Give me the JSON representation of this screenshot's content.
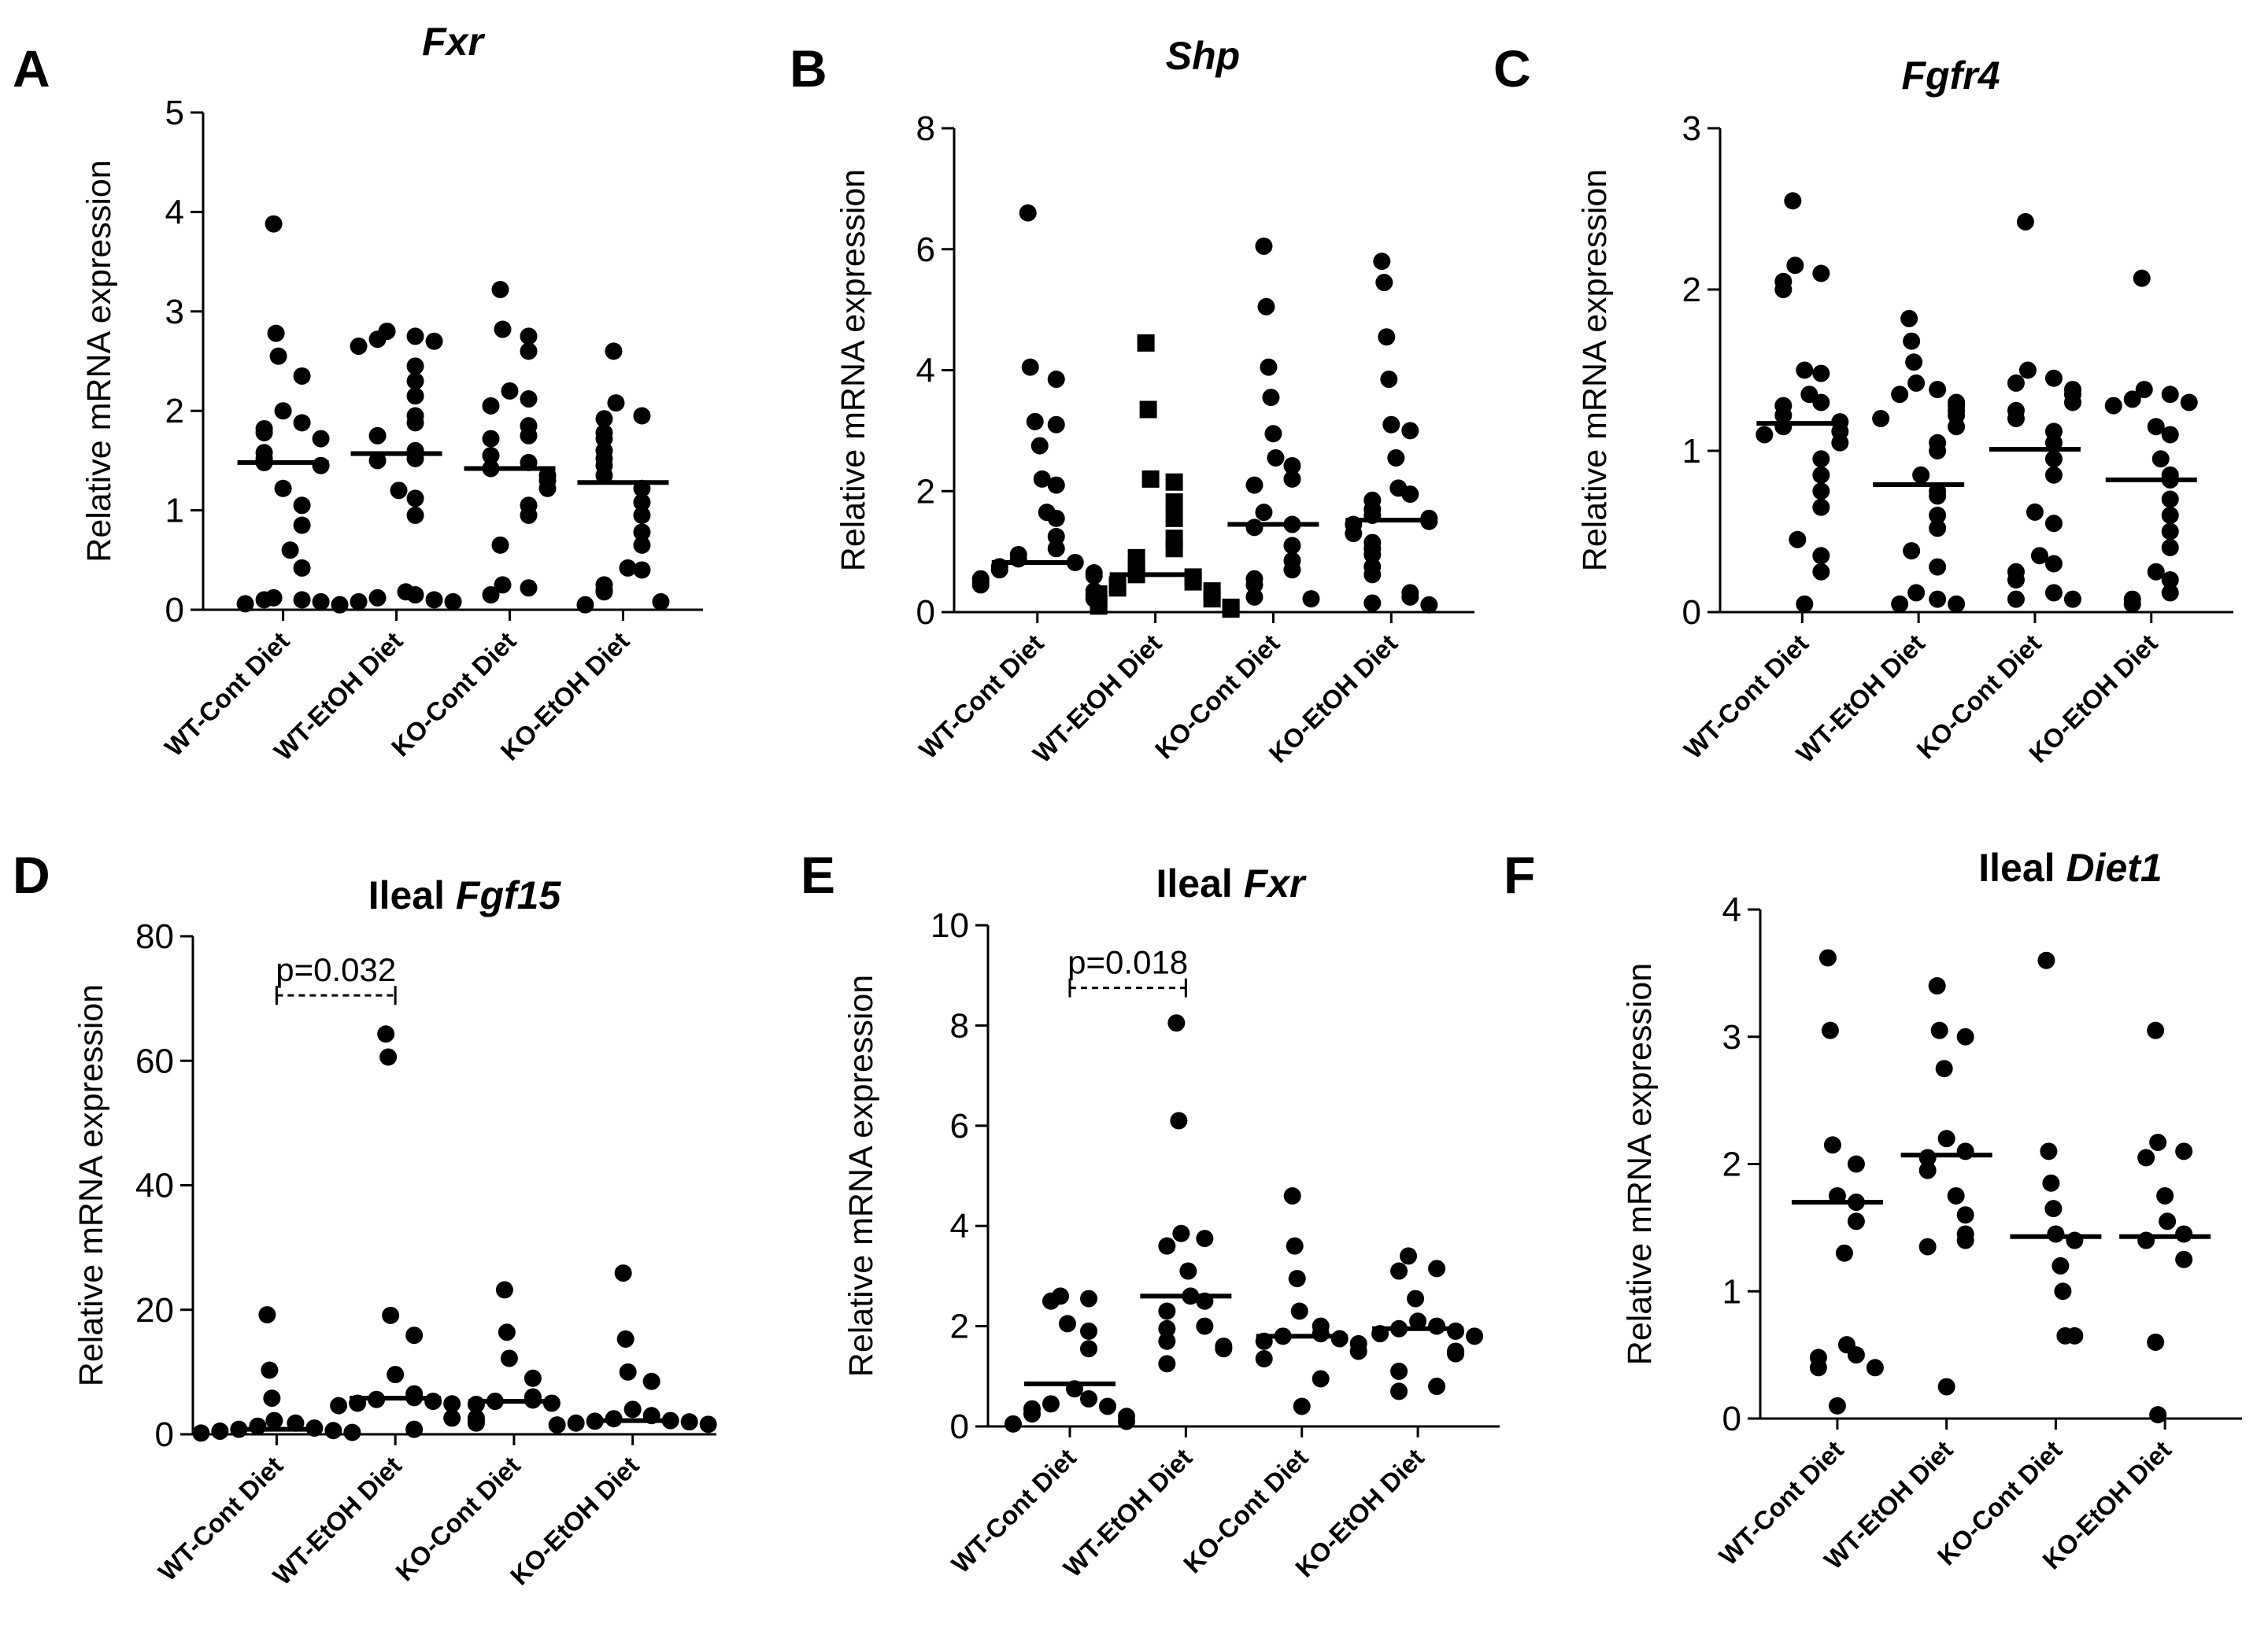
{
  "figure": {
    "background": "#ffffff",
    "ink": "#000000"
  },
  "chart_data": [
    {
      "type": "scatter",
      "panel": "A",
      "title": {
        "prefix": "",
        "gene": "Fxr"
      },
      "ylabel": "Relative mRNA expression",
      "ylim": [
        0,
        5
      ],
      "yticks": [
        0,
        1,
        2,
        3,
        4,
        5
      ],
      "categories": [
        "WT-Cont Diet",
        "WT-EtOH Diet",
        "KO-Cont Diet",
        "KO-EtOH Diet"
      ],
      "medians": [
        1.48,
        1.57,
        1.42,
        1.28
      ],
      "series": [
        {
          "name": "WT-Cont Diet",
          "marker": "circle",
          "values": [
            3.88,
            2.78,
            2.55,
            2.35,
            2.0,
            1.88,
            1.82,
            1.78,
            1.72,
            1.58,
            1.52,
            1.48,
            1.45,
            1.22,
            1.05,
            0.85,
            0.6,
            0.42,
            0.12,
            0.1,
            0.1,
            0.08,
            0.06,
            0.05
          ]
        },
        {
          "name": "WT-EtOH Diet",
          "marker": "circle",
          "values": [
            2.8,
            2.75,
            2.72,
            2.7,
            2.65,
            2.45,
            2.3,
            2.15,
            1.95,
            1.88,
            1.75,
            1.6,
            1.52,
            1.5,
            1.2,
            1.12,
            0.95,
            0.18,
            0.15,
            0.12,
            0.1,
            0.08,
            0.08,
            0.05
          ]
        },
        {
          "name": "KO-Cont Diet",
          "marker": "circle",
          "values": [
            3.22,
            2.82,
            2.75,
            2.6,
            2.2,
            2.12,
            2.05,
            1.85,
            1.75,
            1.72,
            1.55,
            1.48,
            1.42,
            1.35,
            1.3,
            1.22,
            1.05,
            0.95,
            0.65,
            0.25,
            0.22,
            0.15
          ]
        },
        {
          "name": "KO-EtOH Diet",
          "marker": "circle",
          "values": [
            2.6,
            2.08,
            1.95,
            1.92,
            1.78,
            1.72,
            1.6,
            1.52,
            1.45,
            1.35,
            1.22,
            1.08,
            0.95,
            0.78,
            0.65,
            0.42,
            0.4,
            0.25,
            0.2,
            0.18,
            0.08,
            0.05
          ]
        }
      ]
    },
    {
      "type": "scatter",
      "panel": "B",
      "title": {
        "prefix": "",
        "gene": "Shp"
      },
      "ylabel": "Relative mRNA expression",
      "ylim": [
        0,
        8
      ],
      "yticks": [
        0,
        2,
        4,
        6,
        8
      ],
      "categories": [
        "WT-Cont Diet",
        "WT-EtOH Diet",
        "KO-Cont Diet",
        "KO-EtOH Diet"
      ],
      "medians": [
        0.82,
        0.62,
        1.45,
        1.52
      ],
      "series": [
        {
          "name": "WT-Cont Diet",
          "marker": "circle",
          "values": [
            6.6,
            4.05,
            3.85,
            3.15,
            3.1,
            2.75,
            2.2,
            2.1,
            1.65,
            1.55,
            1.25,
            1.05,
            0.95,
            0.88,
            0.82,
            0.75,
            0.7,
            0.65,
            0.6,
            0.55,
            0.5,
            0.45,
            0.35,
            0.28,
            0.22
          ]
        },
        {
          "name": "WT-EtOH Diet",
          "marker": "square",
          "values": [
            4.45,
            3.35,
            2.2,
            2.15,
            1.82,
            1.55,
            1.22,
            1.05,
            0.9,
            0.75,
            0.62,
            0.58,
            0.5,
            0.45,
            0.4,
            0.35,
            0.3,
            0.22,
            0.2,
            0.15,
            0.1,
            0.08,
            0.05
          ]
        },
        {
          "name": "KO-Cont Diet",
          "marker": "circle",
          "values": [
            6.05,
            5.05,
            4.05,
            3.55,
            2.95,
            2.55,
            2.42,
            2.2,
            2.1,
            1.65,
            1.45,
            1.4,
            1.1,
            0.85,
            0.7,
            0.55,
            0.45,
            0.25,
            0.22
          ]
        },
        {
          "name": "KO-EtOH Diet",
          "marker": "circle",
          "values": [
            5.8,
            5.45,
            4.55,
            3.85,
            3.1,
            3.0,
            2.55,
            2.05,
            1.95,
            1.85,
            1.7,
            1.6,
            1.55,
            1.5,
            1.45,
            1.3,
            1.15,
            1.05,
            0.95,
            0.75,
            0.62,
            0.32,
            0.25,
            0.15,
            0.12
          ]
        }
      ]
    },
    {
      "type": "scatter",
      "panel": "C",
      "title": {
        "prefix": "",
        "gene": "Fgfr4"
      },
      "ylabel": "Relative mRNA expression",
      "ylim": [
        0,
        3
      ],
      "yticks": [
        0,
        1,
        2,
        3
      ],
      "categories": [
        "WT-Cont Diet",
        "WT-EtOH Diet",
        "KO-Cont Diet",
        "KO-EtOH Diet"
      ],
      "medians": [
        1.17,
        0.79,
        1.01,
        0.82
      ],
      "series": [
        {
          "name": "WT-Cont Diet",
          "marker": "circle",
          "values": [
            2.55,
            2.15,
            2.1,
            2.05,
            2.0,
            1.5,
            1.48,
            1.35,
            1.3,
            1.28,
            1.22,
            1.18,
            1.15,
            1.12,
            1.1,
            1.05,
            0.95,
            0.85,
            0.75,
            0.65,
            0.45,
            0.35,
            0.25,
            0.05
          ]
        },
        {
          "name": "WT-EtOH Diet",
          "marker": "circle",
          "values": [
            1.82,
            1.68,
            1.55,
            1.42,
            1.38,
            1.35,
            1.3,
            1.28,
            1.25,
            1.22,
            1.2,
            1.15,
            1.05,
            1.0,
            0.85,
            0.75,
            0.72,
            0.6,
            0.52,
            0.38,
            0.28,
            0.12,
            0.08,
            0.05,
            0.05
          ]
        },
        {
          "name": "KO-Cont Diet",
          "marker": "circle",
          "values": [
            2.42,
            1.5,
            1.45,
            1.42,
            1.38,
            1.35,
            1.3,
            1.25,
            1.2,
            1.12,
            1.05,
            0.95,
            0.85,
            0.62,
            0.55,
            0.35,
            0.3,
            0.25,
            0.2,
            0.12,
            0.08,
            0.08
          ]
        },
        {
          "name": "KO-EtOH Diet",
          "marker": "circle",
          "values": [
            2.07,
            1.38,
            1.35,
            1.32,
            1.3,
            1.28,
            1.15,
            1.1,
            0.95,
            0.85,
            0.82,
            0.7,
            0.6,
            0.5,
            0.4,
            0.25,
            0.2,
            0.12,
            0.08,
            0.05
          ]
        }
      ]
    },
    {
      "type": "scatter",
      "panel": "D",
      "title": {
        "prefix": "Ileal ",
        "gene": "Fgf15"
      },
      "ylabel": "Relative mRNA expression",
      "ylim": [
        0,
        80
      ],
      "yticks": [
        0,
        20,
        40,
        60,
        80
      ],
      "categories": [
        "WT-Cont Diet",
        "WT-EtOH Diet",
        "KO-Cont Diet",
        "KO-EtOH Diet"
      ],
      "medians": [
        0.8,
        5.8,
        5.3,
        2.2
      ],
      "comparison": {
        "from": 0,
        "to": 1,
        "label": "p=0.032",
        "y": 70.5
      },
      "series": [
        {
          "name": "WT-Cont Diet",
          "marker": "circle",
          "values": [
            19.2,
            10.3,
            5.8,
            2.2,
            1.8,
            1.3,
            1.0,
            0.8,
            0.6,
            0.5,
            0.3,
            0.2
          ]
        },
        {
          "name": "WT-EtOH Diet",
          "marker": "circle",
          "values": [
            64.3,
            60.6,
            19.1,
            15.9,
            9.6,
            6.5,
            5.9,
            5.6,
            5.3,
            5.0,
            4.9,
            4.6,
            2.6,
            0.8
          ]
        },
        {
          "name": "KO-Cont Diet",
          "marker": "circle",
          "values": [
            23.2,
            16.4,
            12.2,
            9.0,
            6.0,
            5.5,
            5.3,
            5.0,
            4.8,
            2.6,
            2.2,
            1.8
          ]
        },
        {
          "name": "KO-EtOH Diet",
          "marker": "circle",
          "values": [
            25.9,
            15.3,
            10.0,
            8.5,
            4.0,
            3.0,
            2.5,
            2.2,
            2.1,
            2.0,
            1.8,
            1.6,
            1.5
          ]
        }
      ]
    },
    {
      "type": "scatter",
      "panel": "E",
      "title": {
        "prefix": "Ileal ",
        "gene": "Fxr"
      },
      "ylabel": "Relative mRNA expression",
      "ylim": [
        0,
        10
      ],
      "yticks": [
        0,
        2,
        4,
        6,
        8,
        10
      ],
      "categories": [
        "WT-Cont Diet",
        "WT-EtOH Diet",
        "KO-Cont Diet",
        "KO-EtOH Diet"
      ],
      "medians": [
        0.85,
        2.6,
        1.8,
        1.95
      ],
      "comparison": {
        "from": 0,
        "to": 1,
        "label": "p=0.018",
        "y": 8.75
      },
      "series": [
        {
          "name": "WT-Cont Diet",
          "marker": "circle",
          "values": [
            2.6,
            2.55,
            2.5,
            2.05,
            1.9,
            1.55,
            0.75,
            0.55,
            0.45,
            0.4,
            0.35,
            0.25,
            0.2,
            0.1,
            0.05
          ]
        },
        {
          "name": "WT-EtOH Diet",
          "marker": "circle",
          "values": [
            8.05,
            6.1,
            3.85,
            3.75,
            3.6,
            3.1,
            2.6,
            2.5,
            2.3,
            2.0,
            1.95,
            1.7,
            1.6,
            1.55,
            1.25
          ]
        },
        {
          "name": "KO-Cont Diet",
          "marker": "circle",
          "values": [
            4.6,
            3.6,
            2.95,
            2.3,
            2.0,
            1.85,
            1.8,
            1.75,
            1.7,
            1.65,
            1.5,
            1.35,
            0.95,
            0.4
          ]
        },
        {
          "name": "KO-EtOH Diet",
          "marker": "circle",
          "values": [
            3.4,
            3.15,
            3.1,
            2.55,
            2.1,
            2.0,
            1.95,
            1.9,
            1.85,
            1.8,
            1.5,
            1.45,
            1.1,
            0.8,
            0.7
          ]
        }
      ]
    },
    {
      "type": "scatter",
      "panel": "F",
      "title": {
        "prefix": "Ileal ",
        "gene": "Diet1"
      },
      "ylabel": "Relative mRNA expression",
      "ylim": [
        0,
        4
      ],
      "yticks": [
        0,
        1,
        2,
        3,
        4
      ],
      "categories": [
        "WT-Cont Diet",
        "WT-EtOH Diet",
        "KO-Cont Diet",
        "KO-EtOH Diet"
      ],
      "medians": [
        1.7,
        2.07,
        1.43,
        1.43
      ],
      "series": [
        {
          "name": "WT-Cont Diet",
          "marker": "circle",
          "values": [
            3.62,
            3.05,
            2.15,
            2.0,
            1.75,
            1.7,
            1.55,
            1.3,
            0.58,
            0.5,
            0.48,
            0.4,
            0.4,
            0.1
          ]
        },
        {
          "name": "WT-EtOH Diet",
          "marker": "circle",
          "values": [
            3.4,
            3.05,
            3.0,
            2.75,
            2.2,
            2.1,
            2.05,
            1.95,
            1.75,
            1.6,
            1.45,
            1.4,
            1.35,
            0.25
          ]
        },
        {
          "name": "KO-Cont Diet",
          "marker": "circle",
          "values": [
            3.6,
            2.1,
            1.85,
            1.65,
            1.45,
            1.4,
            1.2,
            1.0,
            0.65,
            0.65
          ]
        },
        {
          "name": "KO-EtOH Diet",
          "marker": "circle",
          "values": [
            3.05,
            2.17,
            2.1,
            2.05,
            1.75,
            1.55,
            1.45,
            1.4,
            1.25,
            0.6,
            0.03
          ]
        }
      ]
    }
  ]
}
